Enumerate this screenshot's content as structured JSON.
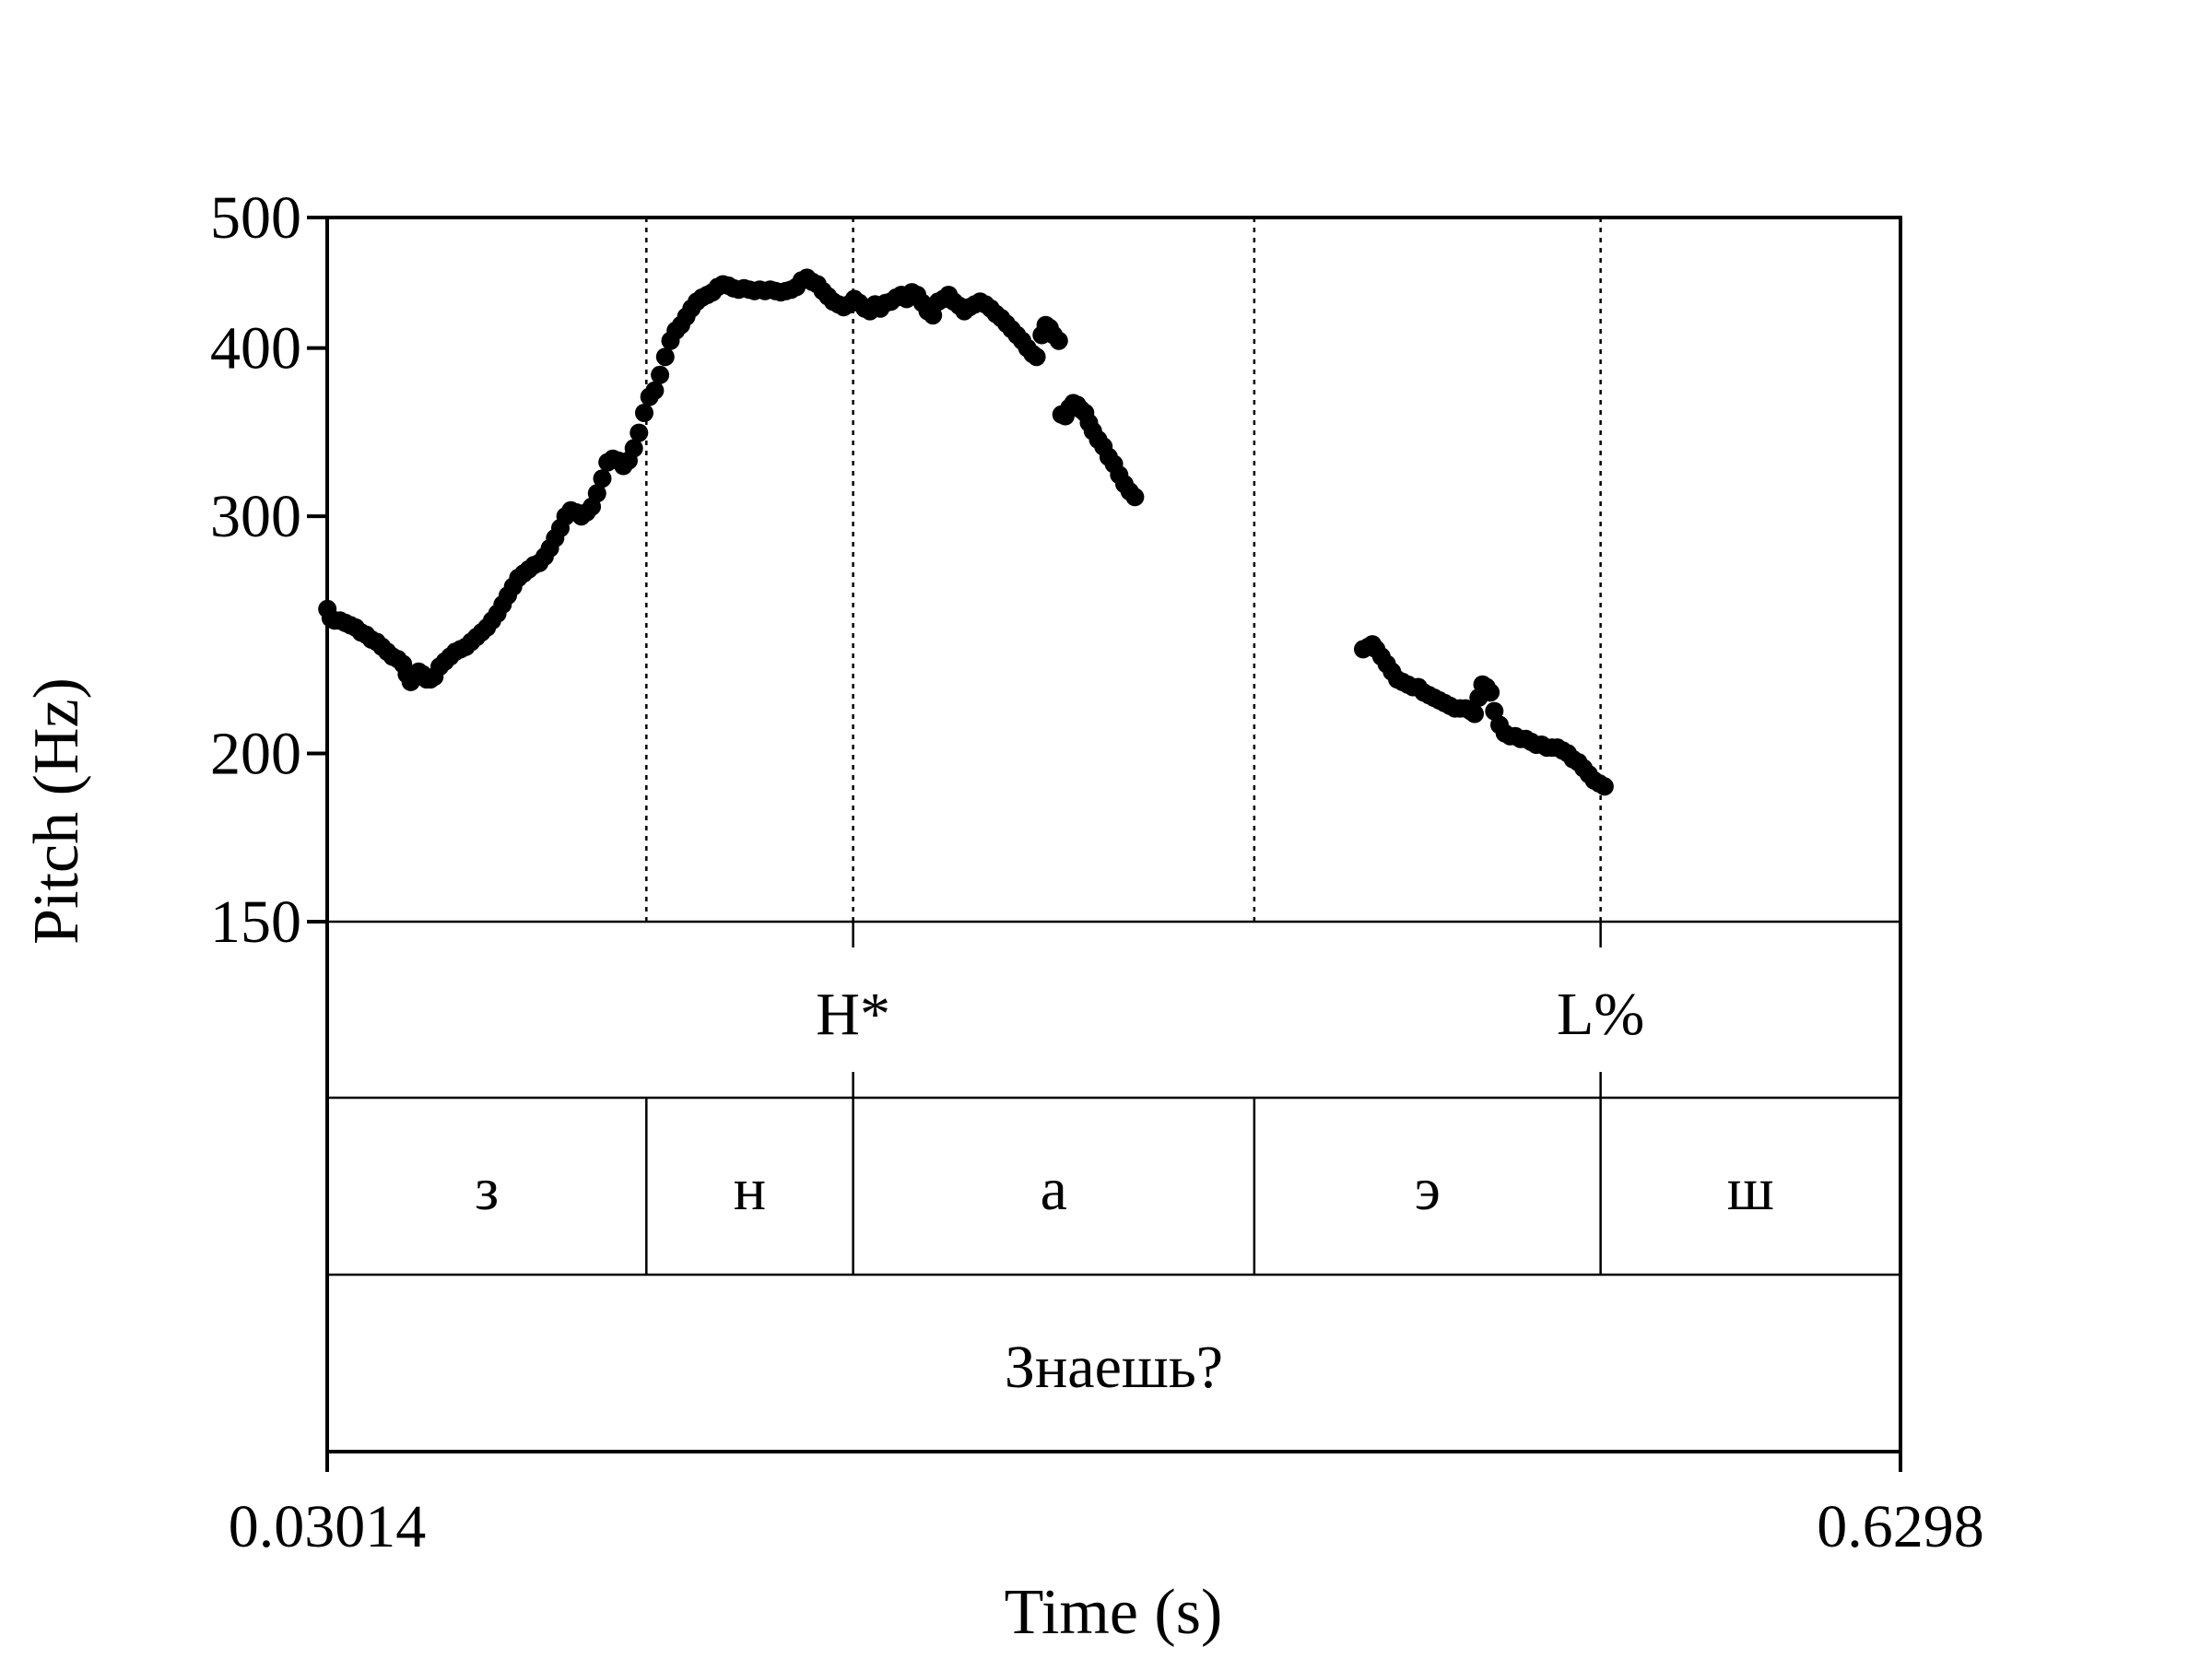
{
  "chart_data": {
    "type": "scatter",
    "title": "",
    "xlabel": "Time (s)",
    "ylabel": "Pitch (Hz)",
    "xlim": [
      0.03014,
      0.6298
    ],
    "ylim": [
      150,
      500
    ],
    "y_scale": "log",
    "x_tick_labels": [
      "0.03014",
      "0.6298"
    ],
    "y_ticks": [
      150,
      200,
      300,
      400,
      500
    ],
    "y_tick_labels": [
      "150",
      "200",
      "300",
      "400",
      "500"
    ],
    "boundaries": [
      0.1518,
      0.2306,
      0.3835,
      0.5155
    ],
    "point_color": "#000000",
    "tone_tier": [
      {
        "label": "H*",
        "time": 0.2306
      },
      {
        "label": "L%",
        "time": 0.5155
      }
    ],
    "segment_tier": [
      {
        "label": "з",
        "start": 0.03014,
        "end": 0.1518
      },
      {
        "label": "н",
        "start": 0.1518,
        "end": 0.2306
      },
      {
        "label": "а",
        "start": 0.2306,
        "end": 0.3835
      },
      {
        "label": "э",
        "start": 0.3835,
        "end": 0.5155
      },
      {
        "label": "ш",
        "start": 0.5155,
        "end": 0.6298
      }
    ],
    "word_tier": [
      {
        "label": "Знаешь?",
        "start": 0.03014,
        "end": 0.6298
      }
    ],
    "series": [
      {
        "points": [
          [
            0.0302,
            256
          ],
          [
            0.0315,
            252
          ],
          [
            0.033,
            251
          ],
          [
            0.035,
            251
          ],
          [
            0.037,
            250
          ],
          [
            0.039,
            249
          ],
          [
            0.041,
            248
          ],
          [
            0.043,
            246
          ],
          [
            0.045,
            245
          ],
          [
            0.047,
            243
          ],
          [
            0.049,
            242
          ],
          [
            0.051,
            240
          ],
          [
            0.053,
            238
          ],
          [
            0.055,
            236
          ],
          [
            0.057,
            235
          ],
          [
            0.059,
            233
          ],
          [
            0.0605,
            229
          ],
          [
            0.062,
            226
          ],
          [
            0.0635,
            228
          ],
          [
            0.065,
            230
          ],
          [
            0.0665,
            229
          ],
          [
            0.068,
            227
          ],
          [
            0.0695,
            227
          ],
          [
            0.071,
            228
          ],
          [
            0.073,
            232
          ],
          [
            0.075,
            234
          ],
          [
            0.077,
            236
          ],
          [
            0.079,
            238
          ],
          [
            0.081,
            239
          ],
          [
            0.083,
            240
          ],
          [
            0.085,
            242
          ],
          [
            0.087,
            244
          ],
          [
            0.089,
            246
          ],
          [
            0.091,
            248
          ],
          [
            0.093,
            251
          ],
          [
            0.095,
            254
          ],
          [
            0.097,
            258
          ],
          [
            0.099,
            262
          ],
          [
            0.101,
            266
          ],
          [
            0.103,
            270
          ],
          [
            0.105,
            272
          ],
          [
            0.107,
            274
          ],
          [
            0.109,
            276
          ],
          [
            0.111,
            277
          ],
          [
            0.113,
            280
          ],
          [
            0.115,
            284
          ],
          [
            0.117,
            289
          ],
          [
            0.119,
            294
          ],
          [
            0.121,
            300
          ],
          [
            0.123,
            303
          ],
          [
            0.125,
            302
          ],
          [
            0.127,
            300
          ],
          [
            0.129,
            302
          ],
          [
            0.131,
            305
          ],
          [
            0.133,
            312
          ],
          [
            0.135,
            320
          ],
          [
            0.137,
            329
          ],
          [
            0.139,
            331
          ],
          [
            0.141,
            330
          ],
          [
            0.143,
            327
          ],
          [
            0.145,
            330
          ],
          [
            0.147,
            337
          ],
          [
            0.149,
            346
          ],
          [
            0.151,
            358
          ],
          [
            0.153,
            368
          ],
          [
            0.155,
            372
          ],
          [
            0.157,
            382
          ],
          [
            0.159,
            394
          ],
          [
            0.161,
            405
          ],
          [
            0.163,
            412
          ],
          [
            0.165,
            416
          ],
          [
            0.167,
            422
          ],
          [
            0.169,
            428
          ],
          [
            0.171,
            433
          ],
          [
            0.173,
            436
          ],
          [
            0.175,
            438
          ],
          [
            0.177,
            440
          ],
          [
            0.179,
            444
          ],
          [
            0.181,
            446
          ],
          [
            0.183,
            445
          ],
          [
            0.185,
            443
          ],
          [
            0.187,
            442
          ],
          [
            0.189,
            443
          ],
          [
            0.191,
            442
          ],
          [
            0.193,
            441
          ],
          [
            0.195,
            442
          ],
          [
            0.197,
            441
          ],
          [
            0.199,
            442
          ],
          [
            0.201,
            441
          ],
          [
            0.203,
            440
          ],
          [
            0.205,
            441
          ],
          [
            0.207,
            442
          ],
          [
            0.209,
            444
          ],
          [
            0.211,
            449
          ],
          [
            0.213,
            451
          ],
          [
            0.215,
            448
          ],
          [
            0.217,
            446
          ],
          [
            0.219,
            441
          ],
          [
            0.221,
            437
          ],
          [
            0.223,
            433
          ],
          [
            0.225,
            431
          ],
          [
            0.227,
            429
          ],
          [
            0.229,
            431
          ],
          [
            0.231,
            435
          ],
          [
            0.233,
            432
          ],
          [
            0.235,
            428
          ],
          [
            0.237,
            426
          ],
          [
            0.239,
            431
          ],
          [
            0.241,
            428
          ],
          [
            0.243,
            432
          ],
          [
            0.245,
            433
          ],
          [
            0.247,
            436
          ],
          [
            0.249,
            438
          ],
          [
            0.251,
            435
          ],
          [
            0.253,
            440
          ],
          [
            0.255,
            438
          ],
          [
            0.257,
            432
          ],
          [
            0.259,
            426
          ],
          [
            0.261,
            423
          ],
          [
            0.263,
            433
          ],
          [
            0.265,
            435
          ],
          [
            0.267,
            438
          ],
          [
            0.269,
            433
          ],
          [
            0.271,
            430
          ],
          [
            0.273,
            426
          ],
          [
            0.275,
            429
          ],
          [
            0.277,
            431
          ],
          [
            0.279,
            433
          ],
          [
            0.281,
            431
          ],
          [
            0.283,
            428
          ],
          [
            0.285,
            424
          ],
          [
            0.287,
            421
          ],
          [
            0.289,
            417
          ],
          [
            0.291,
            413
          ],
          [
            0.293,
            409
          ],
          [
            0.295,
            405
          ],
          [
            0.297,
            400
          ],
          [
            0.299,
            396
          ],
          [
            0.3005,
            394
          ],
          [
            0.3025,
            409
          ],
          [
            0.304,
            416
          ],
          [
            0.3055,
            414
          ],
          [
            0.307,
            409
          ],
          [
            0.309,
            405
          ],
          [
            0.31,
            357
          ],
          [
            0.3115,
            356
          ],
          [
            0.313,
            361
          ],
          [
            0.3145,
            364
          ],
          [
            0.316,
            363
          ],
          [
            0.3175,
            360
          ],
          [
            0.319,
            358
          ],
          [
            0.3205,
            352
          ],
          [
            0.322,
            347
          ],
          [
            0.324,
            342
          ],
          [
            0.326,
            338
          ],
          [
            0.328,
            332
          ],
          [
            0.33,
            328
          ],
          [
            0.332,
            322
          ],
          [
            0.334,
            317
          ],
          [
            0.336,
            313
          ],
          [
            0.338,
            310
          ],
          [
            0.425,
            239
          ],
          [
            0.427,
            240
          ],
          [
            0.4285,
            241
          ],
          [
            0.43,
            239
          ],
          [
            0.432,
            236
          ],
          [
            0.434,
            233
          ],
          [
            0.436,
            230
          ],
          [
            0.438,
            227
          ],
          [
            0.44,
            226
          ],
          [
            0.442,
            225
          ],
          [
            0.444,
            224
          ],
          [
            0.446,
            224
          ],
          [
            0.448,
            222
          ],
          [
            0.45,
            221
          ],
          [
            0.452,
            220
          ],
          [
            0.454,
            219
          ],
          [
            0.456,
            218
          ],
          [
            0.458,
            217
          ],
          [
            0.46,
            216
          ],
          [
            0.462,
            216
          ],
          [
            0.464,
            216
          ],
          [
            0.466,
            215
          ],
          [
            0.4675,
            214
          ],
          [
            0.469,
            220
          ],
          [
            0.4705,
            225
          ],
          [
            0.472,
            224
          ],
          [
            0.4735,
            222
          ],
          [
            0.475,
            215
          ],
          [
            0.477,
            210
          ],
          [
            0.479,
            207
          ],
          [
            0.481,
            206
          ],
          [
            0.483,
            206
          ],
          [
            0.485,
            205
          ],
          [
            0.487,
            205
          ],
          [
            0.489,
            204
          ],
          [
            0.491,
            203
          ],
          [
            0.493,
            203
          ],
          [
            0.495,
            202
          ],
          [
            0.497,
            202
          ],
          [
            0.499,
            202
          ],
          [
            0.501,
            201
          ],
          [
            0.503,
            200
          ],
          [
            0.505,
            198
          ],
          [
            0.507,
            197
          ],
          [
            0.509,
            195
          ],
          [
            0.511,
            193
          ],
          [
            0.513,
            191
          ],
          [
            0.515,
            190
          ],
          [
            0.517,
            189
          ]
        ]
      }
    ]
  }
}
